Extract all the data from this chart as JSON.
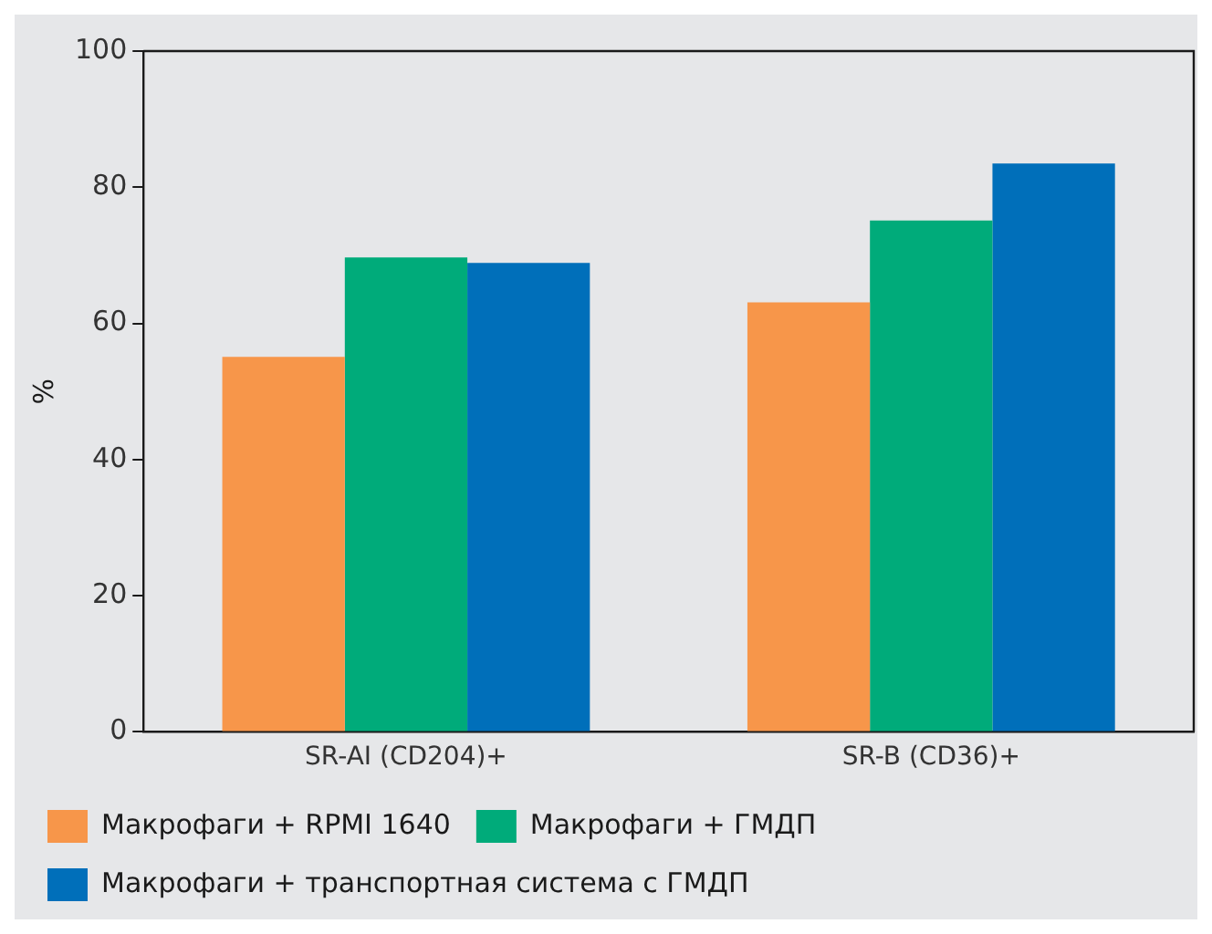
{
  "chart_data": {
    "type": "bar",
    "ylabel": "%",
    "categories": [
      "SR-AI (CD204)+",
      "SR-B (CD36)+"
    ],
    "series": [
      {
        "name": "Макрофаги + RPMI 1640",
        "color": "#f7964a",
        "values": [
          55.1,
          63.1
        ]
      },
      {
        "name": "Макрофаги + ГМДП",
        "color": "#00ab7a",
        "values": [
          69.7,
          75.1
        ]
      },
      {
        "name": "Макрофаги + транспортная система с ГМДП",
        "color": "#006fba",
        "values": [
          68.9,
          83.5
        ]
      }
    ],
    "ylim": [
      0,
      100
    ],
    "yticks": [
      0,
      20,
      40,
      60,
      80,
      100
    ],
    "legend": "bottom"
  }
}
